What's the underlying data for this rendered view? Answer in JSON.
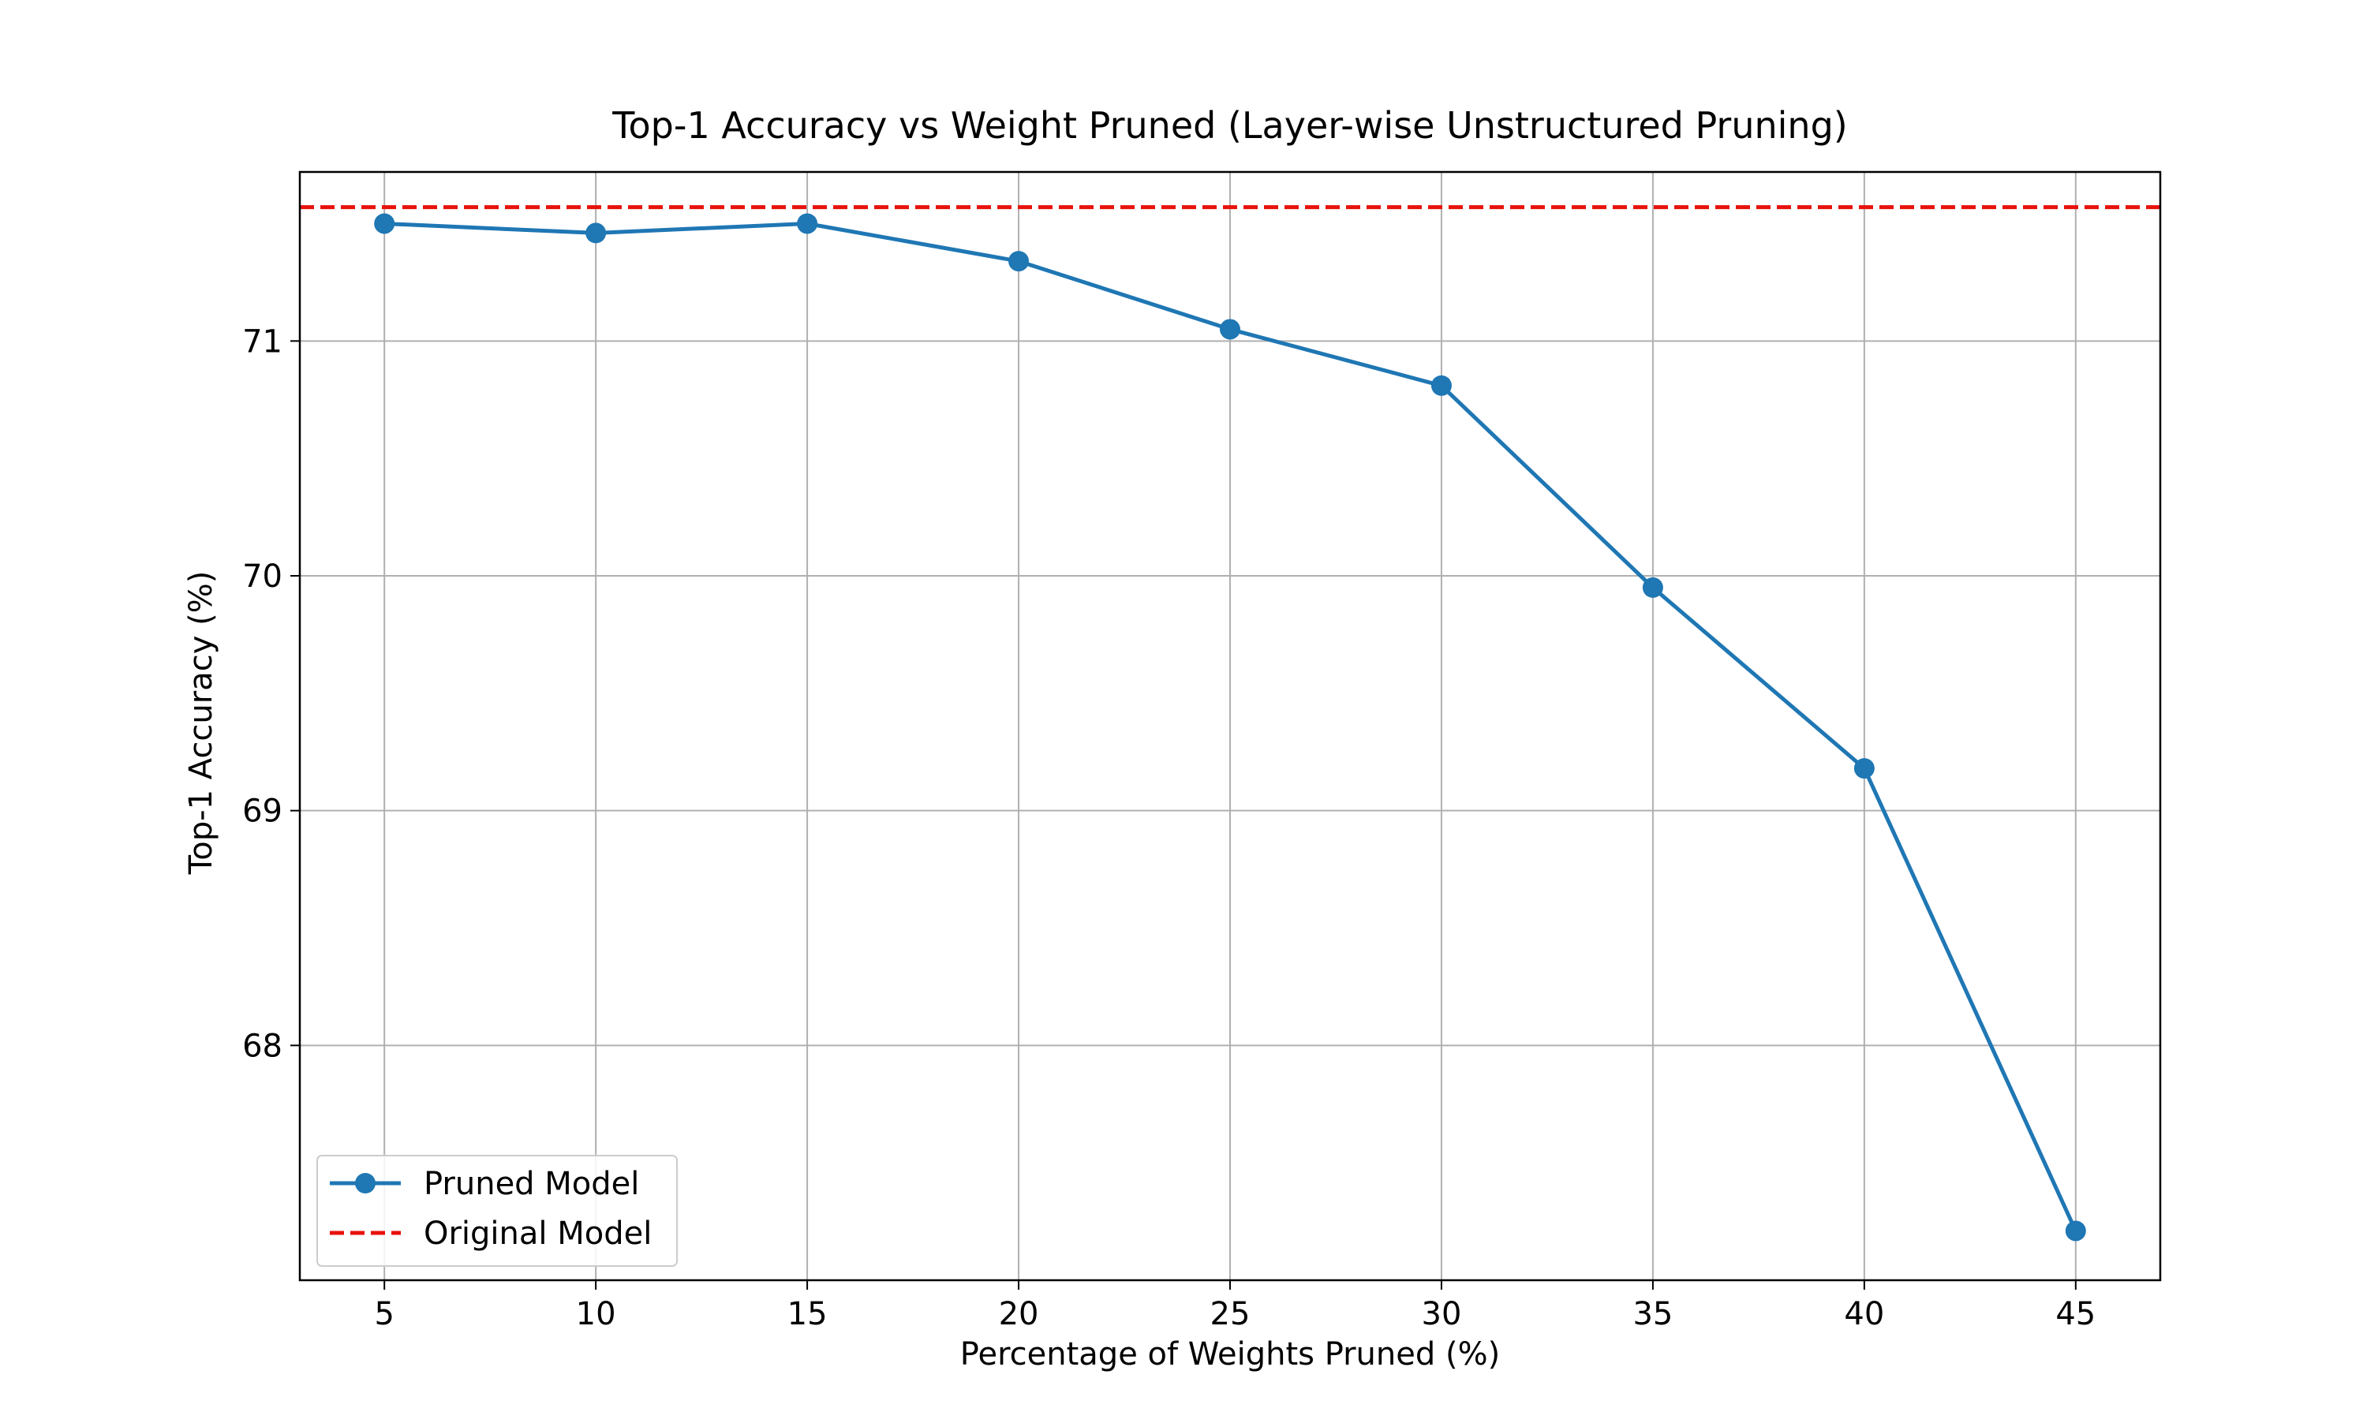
{
  "chart_data": {
    "type": "line",
    "title": "Top-1 Accuracy vs Weight Pruned (Layer-wise Unstructured Pruning)",
    "xlabel": "Percentage of Weights Pruned (%)",
    "ylabel": "Top-1 Accuracy (%)",
    "x": [
      5,
      10,
      15,
      20,
      25,
      30,
      35,
      40,
      45
    ],
    "x_ticks": [
      "5",
      "10",
      "15",
      "20",
      "25",
      "30",
      "35",
      "40",
      "45"
    ],
    "y_ticks": [
      "68",
      "69",
      "70",
      "71"
    ],
    "xlim": [
      3.0,
      47.0
    ],
    "ylim": [
      67.0,
      71.72
    ],
    "grid": true,
    "legend_position": "lower-left",
    "series": [
      {
        "name": "Pruned Model",
        "style": "solid line with circle markers",
        "color": "#1f77b4",
        "values": [
          71.5,
          71.46,
          71.5,
          71.34,
          71.05,
          70.81,
          69.95,
          69.18,
          67.21
        ]
      },
      {
        "name": "Original Model",
        "style": "dashed horizontal line",
        "color": "#e8120c",
        "y": 71.57
      }
    ]
  }
}
